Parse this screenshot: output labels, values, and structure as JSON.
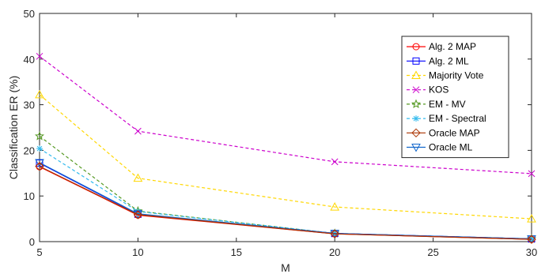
{
  "chart_data": {
    "type": "line",
    "xlabel": "M",
    "ylabel": "Classification ER (%)",
    "xlim": [
      5,
      30
    ],
    "ylim": [
      0,
      50
    ],
    "xticks": [
      5,
      10,
      15,
      20,
      25,
      30
    ],
    "yticks": [
      0,
      10,
      20,
      30,
      40,
      50
    ],
    "grid": false,
    "legend_position": "top-right",
    "x": [
      5,
      10,
      20,
      30
    ],
    "series": [
      {
        "name": "Alg. 2 MAP",
        "values": [
          16.4,
          5.8,
          1.7,
          0.5
        ],
        "color": "#ff0000",
        "dash": "solid",
        "marker": "circle"
      },
      {
        "name": "Alg. 2 ML",
        "values": [
          17.2,
          6.0,
          1.8,
          0.6
        ],
        "color": "#0000ff",
        "dash": "solid",
        "marker": "square"
      },
      {
        "name": "Majority Vote",
        "values": [
          32.2,
          13.9,
          7.6,
          5.0
        ],
        "color": "#ffd700",
        "dash": "dashed",
        "marker": "triangle-up"
      },
      {
        "name": "KOS",
        "values": [
          40.6,
          24.2,
          17.5,
          14.9
        ],
        "color": "#cc00cc",
        "dash": "dashed",
        "marker": "x"
      },
      {
        "name": "EM - MV",
        "values": [
          23.1,
          6.7,
          1.8,
          0.6
        ],
        "color": "#559922",
        "dash": "dashed",
        "marker": "star"
      },
      {
        "name": "EM - Spectral",
        "values": [
          20.4,
          6.6,
          1.8,
          0.6
        ],
        "color": "#33bbee",
        "dash": "dashed",
        "marker": "asterisk"
      },
      {
        "name": "Oracle MAP",
        "values": [
          16.5,
          5.9,
          1.7,
          0.5
        ],
        "color": "#aa3300",
        "dash": "solid",
        "marker": "diamond"
      },
      {
        "name": "Oracle ML",
        "values": [
          17.3,
          6.1,
          1.8,
          0.6
        ],
        "color": "#1166cc",
        "dash": "solid",
        "marker": "triangle-down"
      }
    ]
  }
}
